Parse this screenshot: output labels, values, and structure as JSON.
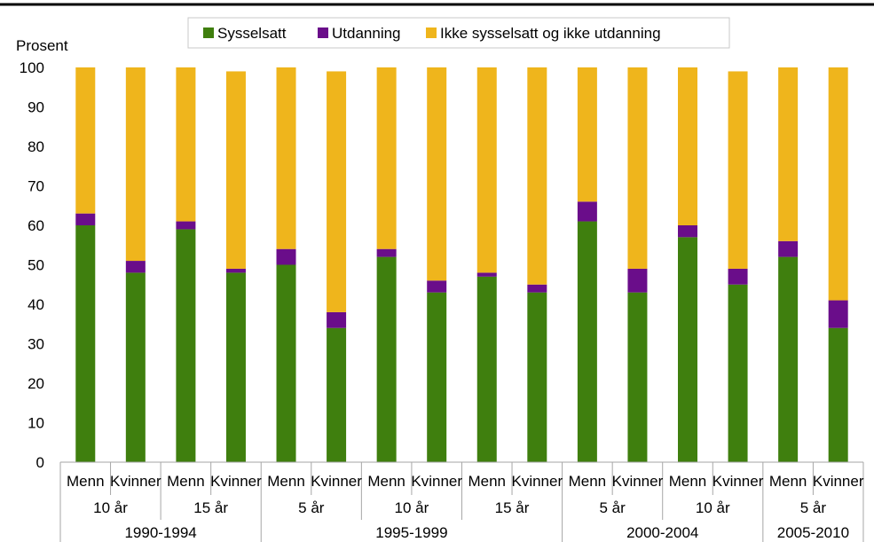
{
  "chart_data": {
    "type": "bar",
    "stacked": true,
    "ylabel": "Prosent",
    "ylim": [
      0,
      100
    ],
    "yticks": [
      0,
      10,
      20,
      30,
      40,
      50,
      60,
      70,
      80,
      90,
      100
    ],
    "grid": false,
    "legend_position": "top",
    "categories": [
      {
        "sex": "Menn",
        "duration": "10 år",
        "period": "1990-1994"
      },
      {
        "sex": "Kvinner",
        "duration": "10 år",
        "period": "1990-1994"
      },
      {
        "sex": "Menn",
        "duration": "15 år",
        "period": "1990-1994"
      },
      {
        "sex": "Kvinner",
        "duration": "15 år",
        "period": "1990-1994"
      },
      {
        "sex": "Menn",
        "duration": "5 år",
        "period": "1995-1999"
      },
      {
        "sex": "Kvinner",
        "duration": "5 år",
        "period": "1995-1999"
      },
      {
        "sex": "Menn",
        "duration": "10 år",
        "period": "1995-1999"
      },
      {
        "sex": "Kvinner",
        "duration": "10 år",
        "period": "1995-1999"
      },
      {
        "sex": "Menn",
        "duration": "15 år",
        "period": "1995-1999"
      },
      {
        "sex": "Kvinner",
        "duration": "15 år",
        "period": "1995-1999"
      },
      {
        "sex": "Menn",
        "duration": "5 år",
        "period": "2000-2004"
      },
      {
        "sex": "Kvinner",
        "duration": "5 år",
        "period": "2000-2004"
      },
      {
        "sex": "Menn",
        "duration": "10 år",
        "period": "2000-2004"
      },
      {
        "sex": "Kvinner",
        "duration": "10 år",
        "period": "2000-2004"
      },
      {
        "sex": "Menn",
        "duration": "5 år",
        "period": "2005-2010"
      },
      {
        "sex": "Kvinner",
        "duration": "5 år",
        "period": "2005-2010"
      }
    ],
    "duration_groups": [
      "10 år",
      "15 år",
      "5 år",
      "10 år",
      "15 år",
      "5 år",
      "10 år",
      "5 år"
    ],
    "period_groups": [
      "1990-1994",
      "1995-1999",
      "2000-2004",
      "2005-2010"
    ],
    "series": [
      {
        "name": "Sysselsatt",
        "color": "#3f7f0e",
        "values": [
          60,
          48,
          59,
          48,
          50,
          34,
          52,
          43,
          47,
          43,
          61,
          43,
          57,
          45,
          52,
          34
        ]
      },
      {
        "name": "Utdanning",
        "color": "#6a0d8a",
        "values": [
          3,
          3,
          2,
          1,
          4,
          4,
          2,
          3,
          1,
          2,
          5,
          6,
          3,
          4,
          4,
          7
        ]
      },
      {
        "name": "Ikke sysselsatt og ikke utdanning",
        "color": "#efb51c",
        "values": [
          37,
          49,
          39,
          50,
          46,
          61,
          46,
          54,
          52,
          55,
          34,
          51,
          40,
          50,
          44,
          59
        ]
      }
    ]
  }
}
